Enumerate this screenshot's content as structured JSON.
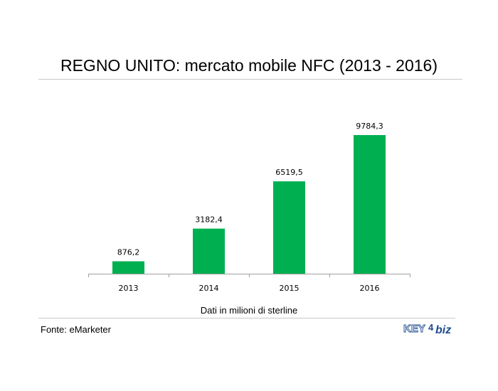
{
  "title": "REGNO UNITO: mercato mobile NFC (2013 - 2016)",
  "note": "Dati in milioni di sterline",
  "source": "Fonte: eMarketer",
  "logo": {
    "text_key": "KEY",
    "text_4": "4",
    "text_biz": "biz",
    "color": "#1d4b8f"
  },
  "colors": {
    "bar": "#00b050",
    "axis": "#a0a0a0",
    "rule": "#c8c8c8"
  },
  "chart_data": {
    "type": "bar",
    "categories": [
      "2013",
      "2014",
      "2015",
      "2016"
    ],
    "values": [
      876.2,
      3182.4,
      6519.5,
      9784.3
    ],
    "value_labels": [
      "876,2",
      "3182,4",
      "6519,5",
      "9784,3"
    ],
    "ylim": [
      0,
      9784.3
    ],
    "grid": false,
    "legend": "none"
  }
}
